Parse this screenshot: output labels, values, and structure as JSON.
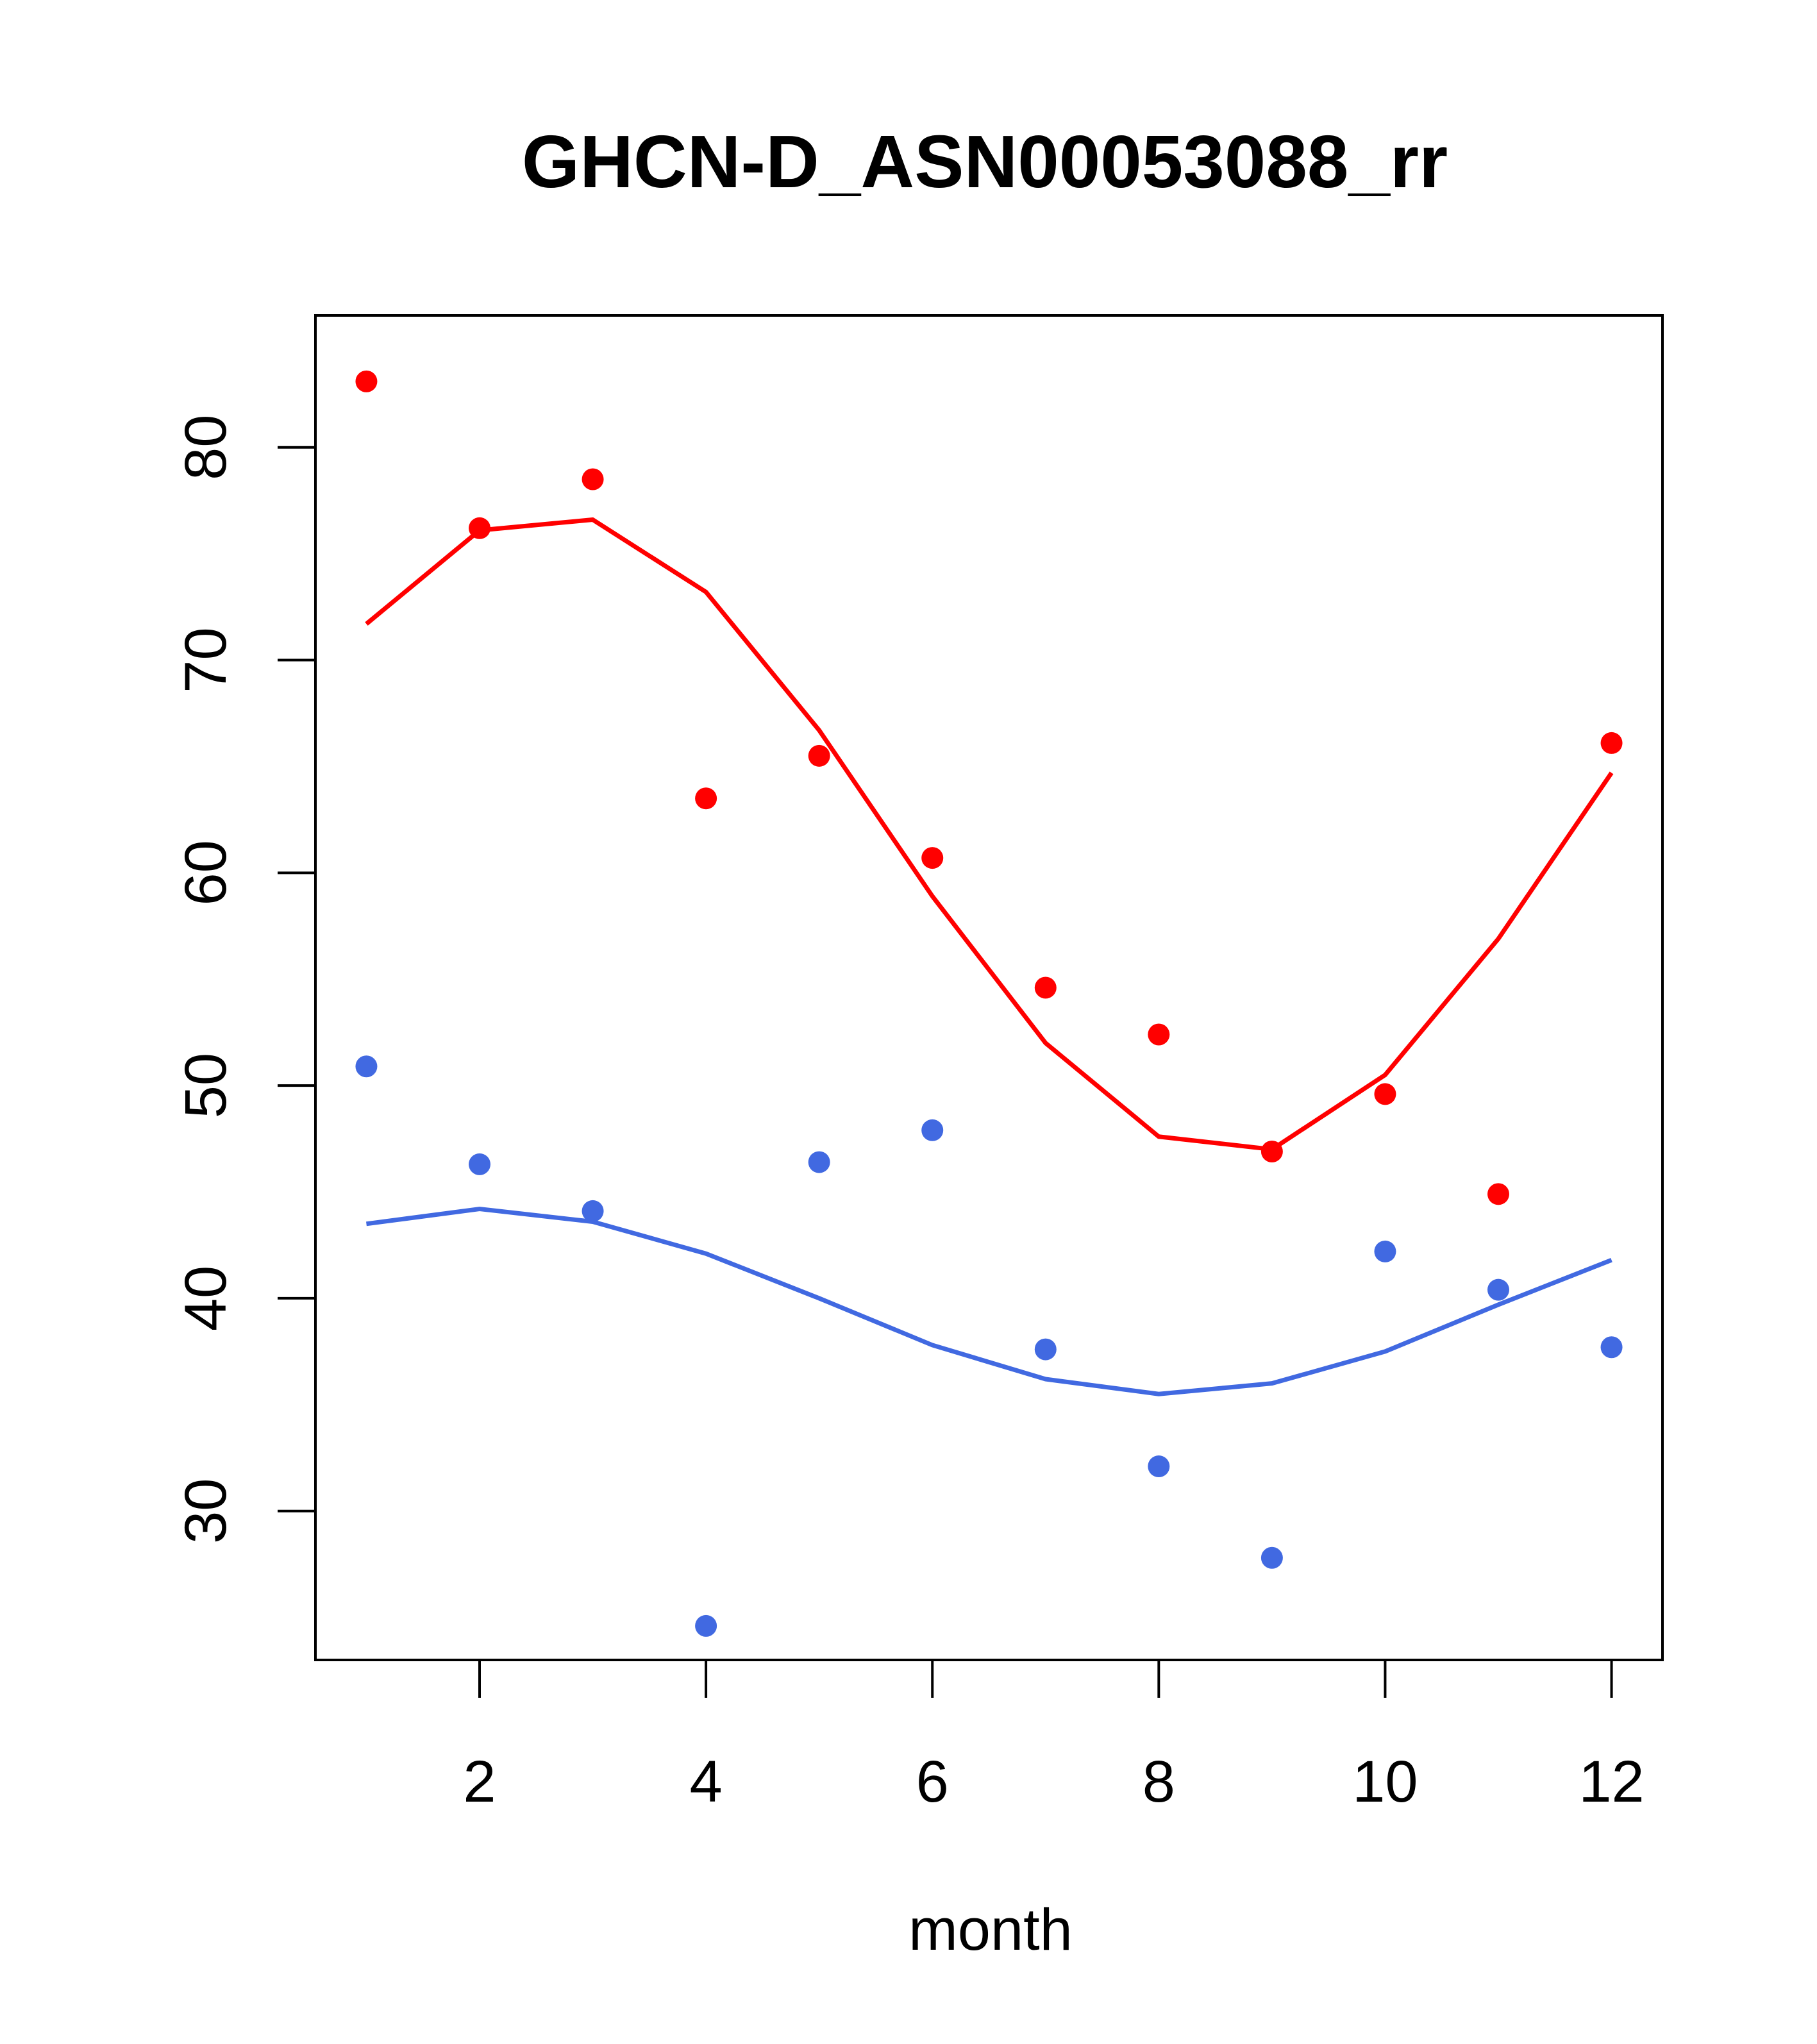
{
  "chart_data": {
    "type": "scatter",
    "title": "GHCN-D_ASN00053088_rr",
    "xlabel": "month",
    "ylabel": "",
    "xlim": [
      0.55,
      12.45
    ],
    "ylim": [
      23.0,
      86.2
    ],
    "x_ticks": [
      2,
      4,
      6,
      8,
      10,
      12
    ],
    "y_ticks": [
      30,
      40,
      50,
      60,
      70,
      80
    ],
    "grid": false,
    "legend": "none",
    "series": [
      {
        "kind": "points",
        "color": "#ff0000",
        "x": [
          1,
          2,
          3,
          4,
          5,
          6,
          7,
          8,
          9,
          10,
          11,
          12
        ],
        "y": [
          83.1,
          76.2,
          78.5,
          63.5,
          65.5,
          60.7,
          54.6,
          52.4,
          46.9,
          49.6,
          44.9,
          66.1
        ]
      },
      {
        "kind": "line",
        "color": "#ff0000",
        "x": [
          1,
          2,
          3,
          4,
          5,
          6,
          7,
          8,
          9,
          10,
          11,
          12
        ],
        "y": [
          71.7,
          76.1,
          76.6,
          73.2,
          66.7,
          58.9,
          52.0,
          47.6,
          47.0,
          50.5,
          56.9,
          64.7
        ]
      },
      {
        "kind": "points",
        "color": "#4169e1",
        "x": [
          1,
          2,
          3,
          4,
          5,
          6,
          7,
          8,
          9,
          10,
          11,
          12
        ],
        "y": [
          50.9,
          46.3,
          44.1,
          24.6,
          46.4,
          47.9,
          37.6,
          32.1,
          27.8,
          42.2,
          40.4,
          37.7
        ]
      },
      {
        "kind": "line",
        "color": "#4169e1",
        "x": [
          1,
          2,
          3,
          4,
          5,
          6,
          7,
          8,
          9,
          10,
          11,
          12
        ],
        "y": [
          43.5,
          44.2,
          43.6,
          42.1,
          40.0,
          37.8,
          36.2,
          35.5,
          36.0,
          37.5,
          39.7,
          41.8
        ]
      }
    ]
  }
}
